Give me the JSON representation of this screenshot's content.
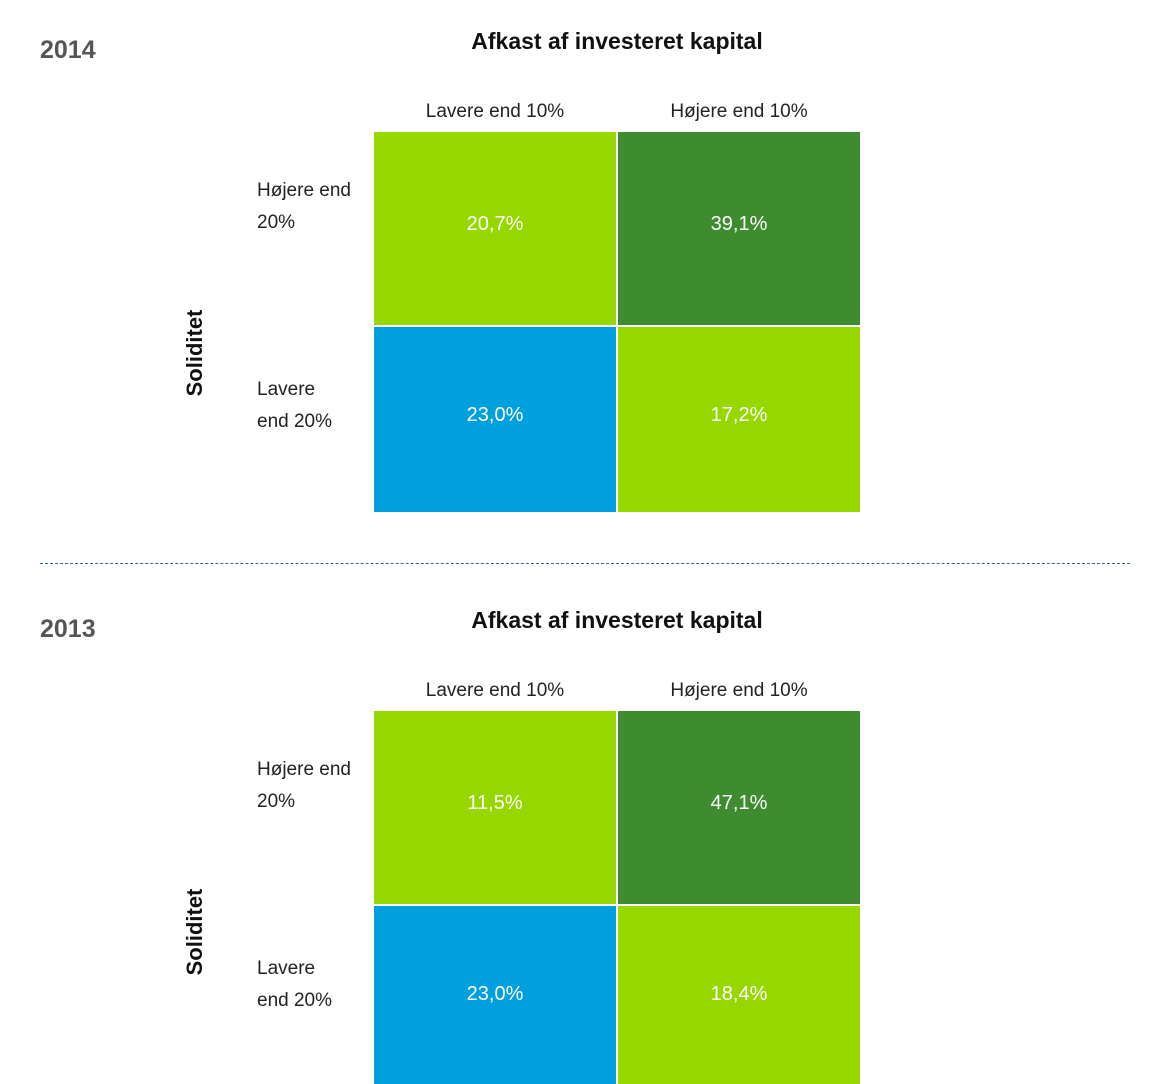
{
  "chart_data": [
    {
      "type": "heatmap",
      "year": "2014",
      "title": "Afkast af investeret kapital",
      "x_categories": [
        "Lavere end 10%",
        "Højere end 10%"
      ],
      "y_categories": [
        "Højere end 20%",
        "Lavere end 20%"
      ],
      "ylabel": "Soliditet",
      "values": [
        [
          20.7,
          39.1
        ],
        [
          23.0,
          17.2
        ]
      ],
      "value_labels": [
        [
          "20,7%",
          "39,1%"
        ],
        [
          "23,0%",
          "17,2%"
        ]
      ],
      "colors": [
        [
          "#97d700",
          "#3e8b30"
        ],
        [
          "#00a0df",
          "#97d700"
        ]
      ]
    },
    {
      "type": "heatmap",
      "year": "2013",
      "title": "Afkast af investeret kapital",
      "x_categories": [
        "Lavere end 10%",
        "Højere end 10%"
      ],
      "y_categories": [
        "Højere end 20%",
        "Lavere end 20%"
      ],
      "ylabel": "Soliditet",
      "values": [
        [
          11.5,
          47.1
        ],
        [
          23.0,
          18.4
        ]
      ],
      "value_labels": [
        [
          "11,5%",
          "47,1%"
        ],
        [
          "23,0%",
          "18,4%"
        ]
      ],
      "colors": [
        [
          "#97d700",
          "#3e8b30"
        ],
        [
          "#00a0df",
          "#97d700"
        ]
      ]
    }
  ]
}
